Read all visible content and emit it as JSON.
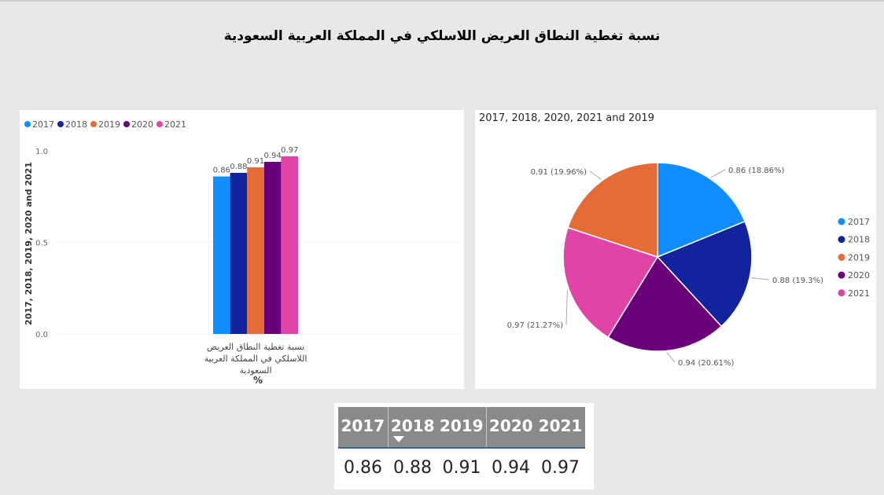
{
  "page_title": "نسبة تغطية النطاق العريض اللاسلكي في المملكة العربية السعودية",
  "colors": {
    "2017": "#118DFF",
    "2018": "#12239E",
    "2019": "#E66C37",
    "2020": "#6B007B",
    "2021": "#E044A7"
  },
  "chart_data": [
    {
      "type": "bar",
      "legend": [
        "2017",
        "2018",
        "2019",
        "2020",
        "2021"
      ],
      "legend_position": "top-left",
      "categories": [
        "نسبة تغطية النطاق العريض اللاسلكي في المملكة العربية السعودية"
      ],
      "category_label_lines": [
        "نسبة تغطية النطاق العريض",
        "اللاسلكي في المملكة العربية",
        "السعودية"
      ],
      "series": [
        {
          "name": "2017",
          "values": [
            0.86
          ],
          "label": "0.86"
        },
        {
          "name": "2018",
          "values": [
            0.88
          ],
          "label": "0.88"
        },
        {
          "name": "2019",
          "values": [
            0.91
          ],
          "label": "0.91"
        },
        {
          "name": "2020",
          "values": [
            0.94
          ],
          "label": "0.94"
        },
        {
          "name": "2021",
          "values": [
            0.97
          ],
          "label": "0.97"
        }
      ],
      "ylabel": "2017, 2018, 2019, 2020 and 2021",
      "xlabel": "%",
      "ylim": [
        0,
        1.0
      ],
      "yticks": [
        {
          "v": 0,
          "label": "0.0"
        },
        {
          "v": 0.5,
          "label": "0.5"
        },
        {
          "v": 1.0,
          "label": "1.0"
        }
      ],
      "grid": true
    },
    {
      "type": "pie",
      "title": "2017, 2018, 2020, 2021 and 2019",
      "legend_position": "right",
      "slices": [
        {
          "name": "2017",
          "value": 0.86,
          "label": "0.86 (18.86%)"
        },
        {
          "name": "2018",
          "value": 0.88,
          "label": "0.88 (19.3%)"
        },
        {
          "name": "2019",
          "value": 0.91,
          "label": "0.91 (19.96%)"
        },
        {
          "name": "2020",
          "value": 0.94,
          "label": "0.94 (20.61%)"
        },
        {
          "name": "2021",
          "value": 0.97,
          "label": "0.97 (21.27%)"
        }
      ],
      "slice_order": [
        "2017",
        "2018",
        "2020",
        "2021",
        "2019"
      ]
    },
    {
      "type": "table",
      "columns": [
        "2017",
        "2018",
        "2019",
        "2020",
        "2021"
      ],
      "rows": [
        [
          "0.86",
          "0.88",
          "0.91",
          "0.94",
          "0.97"
        ]
      ],
      "sorted_column": "2018"
    }
  ]
}
